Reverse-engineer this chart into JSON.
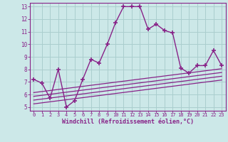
{
  "xlabel": "Windchill (Refroidissement éolien,°C)",
  "bg_color": "#cce8e8",
  "grid_color": "#aacece",
  "line_color": "#882288",
  "xlim": [
    -0.5,
    23.5
  ],
  "ylim": [
    4.7,
    13.3
  ],
  "xticks": [
    0,
    1,
    2,
    3,
    4,
    5,
    6,
    7,
    8,
    9,
    10,
    11,
    12,
    13,
    14,
    15,
    16,
    17,
    18,
    19,
    20,
    21,
    22,
    23
  ],
  "yticks": [
    5,
    6,
    7,
    8,
    9,
    10,
    11,
    12,
    13
  ],
  "main_x": [
    0,
    1,
    2,
    3,
    4,
    5,
    6,
    7,
    8,
    9,
    10,
    11,
    12,
    13,
    14,
    15,
    16,
    17,
    18,
    19,
    20,
    21,
    22,
    23
  ],
  "main_y": [
    7.2,
    6.9,
    5.7,
    8.0,
    5.0,
    5.5,
    7.2,
    8.8,
    8.5,
    10.0,
    11.7,
    13.0,
    13.0,
    13.0,
    11.2,
    11.6,
    11.1,
    10.9,
    8.1,
    7.7,
    8.3,
    8.3,
    9.5,
    8.3
  ],
  "line1_x": [
    0,
    23
  ],
  "line1_y": [
    6.15,
    8.05
  ],
  "line2_x": [
    0,
    23
  ],
  "line2_y": [
    5.85,
    7.75
  ],
  "line3_x": [
    0,
    23
  ],
  "line3_y": [
    5.55,
    7.45
  ],
  "line4_x": [
    0,
    23
  ],
  "line4_y": [
    5.25,
    7.15
  ]
}
